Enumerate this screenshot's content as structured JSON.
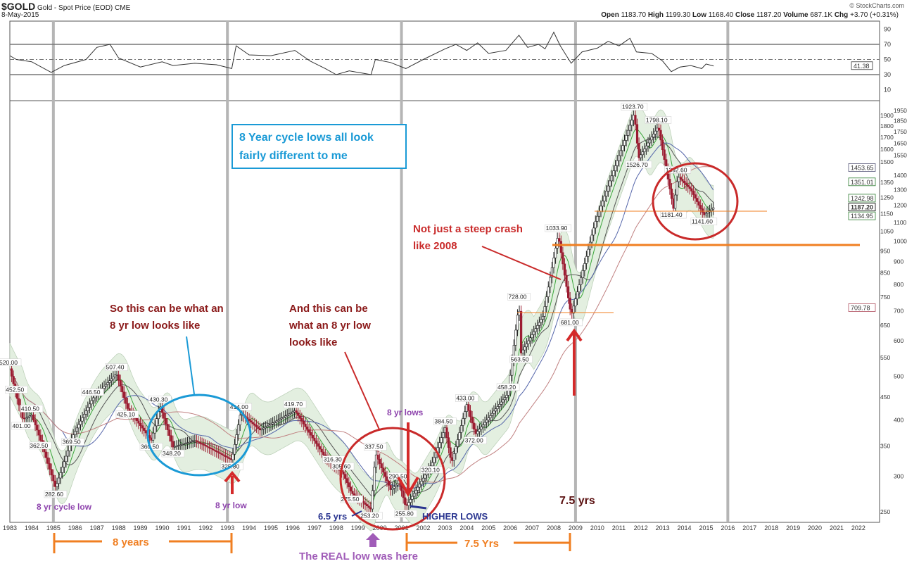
{
  "header": {
    "symbol": "$GOLD",
    "name": "Gold - Spot Price (EOD)",
    "exchange": "CME",
    "date": "8-May-2015",
    "source": "© StockCharts.com",
    "open_label": "Open",
    "open": "1183.70",
    "high_label": "High",
    "high": "1199.30",
    "low_label": "Low",
    "low": "1168.40",
    "close_label": "Close",
    "close": "1187.20",
    "volume_label": "Volume",
    "volume": "687.1K",
    "chg_label": "Chg",
    "chg": "+3.70 (+0.31%)"
  },
  "chart_data": [
    {
      "type": "line",
      "panel": "RSI",
      "yticks": [
        90,
        70,
        50,
        30,
        10
      ],
      "ylim": [
        0,
        100
      ],
      "reference_lines": [
        70,
        50,
        30
      ],
      "last_value_tag": "41.38",
      "points": [
        [
          1983,
          55
        ],
        [
          1983.3,
          50
        ],
        [
          1984,
          47
        ],
        [
          1984.9,
          33
        ],
        [
          1985.5,
          42
        ],
        [
          1986.5,
          50
        ],
        [
          1987,
          66
        ],
        [
          1987.6,
          70
        ],
        [
          1988,
          52
        ],
        [
          1989,
          40
        ],
        [
          1990,
          47
        ],
        [
          1990.5,
          42
        ],
        [
          1991.5,
          45
        ],
        [
          1992.5,
          43
        ],
        [
          1993.2,
          38
        ],
        [
          1993.4,
          68
        ],
        [
          1994,
          56
        ],
        [
          1995,
          55
        ],
        [
          1996.1,
          62
        ],
        [
          1996.8,
          48
        ],
        [
          1997.5,
          38
        ],
        [
          1998,
          30
        ],
        [
          1998.6,
          35
        ],
        [
          1999.6,
          30
        ],
        [
          1999.8,
          50
        ],
        [
          2000.5,
          46
        ],
        [
          2001.2,
          38
        ],
        [
          2002,
          50
        ],
        [
          2003,
          64
        ],
        [
          2003.5,
          70
        ],
        [
          2004,
          62
        ],
        [
          2004.5,
          72
        ],
        [
          2005,
          58
        ],
        [
          2005.8,
          62
        ],
        [
          2006.4,
          82
        ],
        [
          2006.8,
          66
        ],
        [
          2007.3,
          70
        ],
        [
          2007.6,
          64
        ],
        [
          2008,
          86
        ],
        [
          2008.3,
          68
        ],
        [
          2008.8,
          45
        ],
        [
          2009.3,
          60
        ],
        [
          2010,
          65
        ],
        [
          2010.5,
          74
        ],
        [
          2011,
          68
        ],
        [
          2011.5,
          78
        ],
        [
          2011.8,
          60
        ],
        [
          2012.5,
          58
        ],
        [
          2013,
          48
        ],
        [
          2013.4,
          34
        ],
        [
          2013.8,
          40
        ],
        [
          2014.3,
          42
        ],
        [
          2014.8,
          38
        ],
        [
          2015,
          44
        ],
        [
          2015.35,
          41.38
        ]
      ]
    },
    {
      "type": "candlestick",
      "panel": "price",
      "scale": "log",
      "ylim": [
        230,
        2000
      ],
      "yticks": [
        250,
        300,
        350,
        400,
        450,
        500,
        550,
        600,
        650,
        700,
        750,
        800,
        850,
        900,
        950,
        1000,
        1050,
        1100,
        1150,
        1200,
        1250,
        1300,
        1350,
        1400,
        1500,
        1550,
        1600,
        1650,
        1700,
        1750,
        1800,
        1850,
        1900,
        1950
      ],
      "xticks": [
        "1983",
        "1984",
        "1985",
        "1986",
        "1987",
        "1988",
        "1989",
        "1990",
        "1991",
        "1992",
        "1993",
        "1994",
        "1995",
        "1996",
        "1997",
        "1998",
        "1999",
        "2000",
        "2001",
        "2002",
        "2003",
        "2004",
        "2005",
        "2006",
        "2007",
        "2008",
        "2009",
        "2010",
        "2011",
        "2012",
        "2013",
        "2014",
        "2015",
        "2016",
        "2017",
        "2018",
        "2019",
        "2020",
        "2021",
        "2022"
      ],
      "cycle_lines": [
        1985,
        1993,
        2001,
        2009,
        2016
      ],
      "points": [
        [
          1983.0,
          520
        ],
        [
          1983.3,
          452.5
        ],
        [
          1983.6,
          401
        ],
        [
          1984.0,
          410.5
        ],
        [
          1984.4,
          362.5
        ],
        [
          1985.1,
          282.6
        ],
        [
          1985.9,
          369.5
        ],
        [
          1986.8,
          446.5
        ],
        [
          1987.9,
          507.4
        ],
        [
          1988.4,
          425.1
        ],
        [
          1989.5,
          360.5
        ],
        [
          1989.9,
          430.3
        ],
        [
          1990.5,
          348.2
        ],
        [
          1991.5,
          360
        ],
        [
          1992.5,
          340
        ],
        [
          1993.2,
          325.8
        ],
        [
          1993.6,
          414
        ],
        [
          1994.5,
          380
        ],
        [
          1996.1,
          419.7
        ],
        [
          1997.5,
          330
        ],
        [
          1997.9,
          316.3
        ],
        [
          1998.3,
          305.6
        ],
        [
          1998.7,
          275.5
        ],
        [
          1999.6,
          253.2
        ],
        [
          1999.8,
          337.5
        ],
        [
          2000.5,
          280
        ],
        [
          2000.9,
          290.5
        ],
        [
          2001.2,
          255.8
        ],
        [
          2002.4,
          320.1
        ],
        [
          2003.0,
          384.5
        ],
        [
          2003.3,
          320.1
        ],
        [
          2004.0,
          433
        ],
        [
          2004.4,
          372
        ],
        [
          2005.9,
          458.2
        ],
        [
          2006.4,
          728
        ],
        [
          2006.5,
          563.5
        ],
        [
          2007.5,
          680
        ],
        [
          2008.2,
          1033.9
        ],
        [
          2008.8,
          681
        ],
        [
          2009.9,
          1100
        ],
        [
          2011.7,
          1923.7
        ],
        [
          2011.9,
          1526.7
        ],
        [
          2012.8,
          1798.1
        ],
        [
          2013.5,
          1181.4
        ],
        [
          2013.7,
          1392.6
        ],
        [
          2014.3,
          1300
        ],
        [
          2014.9,
          1141.6
        ],
        [
          2015.35,
          1187.2
        ]
      ],
      "labels": [
        [
          1983.0,
          "520.00"
        ],
        [
          1983.3,
          "452.50"
        ],
        [
          1983.6,
          "401.00"
        ],
        [
          1984.0,
          "410.50"
        ],
        [
          1984.4,
          "362.50"
        ],
        [
          1985.1,
          "282.60"
        ],
        [
          1985.9,
          "369.50"
        ],
        [
          1986.8,
          "446.50"
        ],
        [
          1987.9,
          "507.40"
        ],
        [
          1988.4,
          "425.10"
        ],
        [
          1989.5,
          "360.50"
        ],
        [
          1989.9,
          "430.30"
        ],
        [
          1990.5,
          "348.20"
        ],
        [
          1993.2,
          "325.80"
        ],
        [
          1993.6,
          "414.00"
        ],
        [
          1996.1,
          "419.70"
        ],
        [
          1997.9,
          "316.30"
        ],
        [
          1998.3,
          "305.60"
        ],
        [
          1998.7,
          "275.50"
        ],
        [
          1999.6,
          "253.20"
        ],
        [
          1999.8,
          "337.50"
        ],
        [
          2000.9,
          "290.50"
        ],
        [
          2001.2,
          "255.80"
        ],
        [
          2002.4,
          "320.10"
        ],
        [
          2003.0,
          "384.50"
        ],
        [
          2004.0,
          "433.00"
        ],
        [
          2004.4,
          "372.00"
        ],
        [
          2005.9,
          "458.20"
        ],
        [
          2006.4,
          "728.00"
        ],
        [
          2006.5,
          "563.50"
        ],
        [
          2008.2,
          "1033.90"
        ],
        [
          2008.8,
          "681.00"
        ],
        [
          2011.7,
          "1923.70"
        ],
        [
          2011.9,
          "1526.70"
        ],
        [
          2012.8,
          "1798.10"
        ],
        [
          2013.5,
          "1181.40"
        ],
        [
          2013.7,
          "1392.60"
        ],
        [
          2014.9,
          "1141.60"
        ]
      ],
      "value_tags": [
        {
          "value": 1453.65,
          "label": "1453.65",
          "color": "#555577"
        },
        {
          "value": 1351.01,
          "label": "1351.01",
          "color": "#2e7d32"
        },
        {
          "value": 1242.98,
          "label": "1242.98",
          "color": "#2e7d32"
        },
        {
          "value": 1187.2,
          "label": "1187.20",
          "color": "#000000",
          "bold": true
        },
        {
          "value": 1134.95,
          "label": "1134.95",
          "color": "#2e7d32"
        },
        {
          "value": 709.78,
          "label": "709.78",
          "color": "#b05060"
        }
      ],
      "horizontal_lines": [
        1000,
        1187.2,
        700
      ],
      "colors": {
        "up": "#1e1e1e",
        "down": "#9b1b30",
        "band": "#e3efe0",
        "ma_short": "#3aa53a",
        "ma_mid": "#555555",
        "ma_long": "#5566aa",
        "ma_200": "#c08080"
      }
    }
  ],
  "annotations": {
    "box_line1": "8 Year cycle lows all look",
    "box_line2": "fairly different to me",
    "so_line1": "So this can be what an",
    "so_line2": "8 yr low looks like",
    "and_line1": "And this can be",
    "and_line2": "what an 8 yr low",
    "and_line3": "looks like",
    "crash_line1": "Not just a steep crash",
    "crash_line2": "like 2008",
    "cycle_low": "8 yr cycle low",
    "yr_low": "8 yr low",
    "yr_lows": "8 yr lows",
    "six_half": "6.5 yrs",
    "higher_lows": "HIGHER LOWS",
    "seven_half": "7.5 yrs",
    "eight_years": "8 years",
    "seven_half_b": "7.5 Yrs",
    "real_low": "The REAL low was here"
  }
}
